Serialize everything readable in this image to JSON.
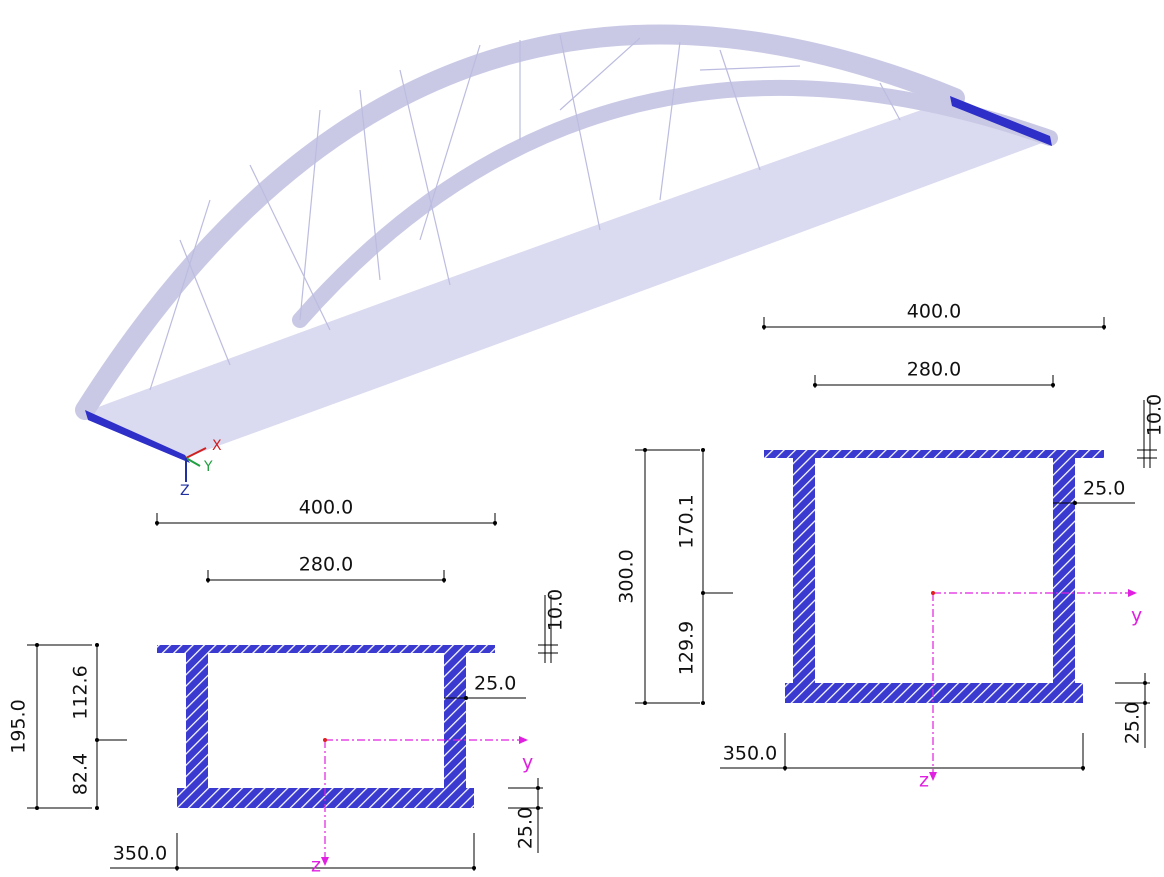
{
  "model": {
    "axes": {
      "x": "X",
      "y": "Y",
      "z": "Z"
    }
  },
  "sections": [
    {
      "dimensions": {
        "top_width": "400.0",
        "web_spacing": "280.0",
        "top_flange": "10.0",
        "height": "195.0",
        "upper_part": "112.6",
        "lower_part": "82.4",
        "web": "25.0",
        "bottom_flange": "25.0",
        "bottom_width": "350.0"
      },
      "axes": {
        "y": "y",
        "z": "z"
      }
    },
    {
      "dimensions": {
        "top_width": "400.0",
        "web_spacing": "280.0",
        "top_flange": "10.0",
        "height": "300.0",
        "upper_part": "170.1",
        "lower_part": "129.9",
        "web": "25.0",
        "bottom_flange": "25.0",
        "bottom_width": "350.0"
      },
      "axes": {
        "y": "y",
        "z": "z"
      }
    }
  ]
}
